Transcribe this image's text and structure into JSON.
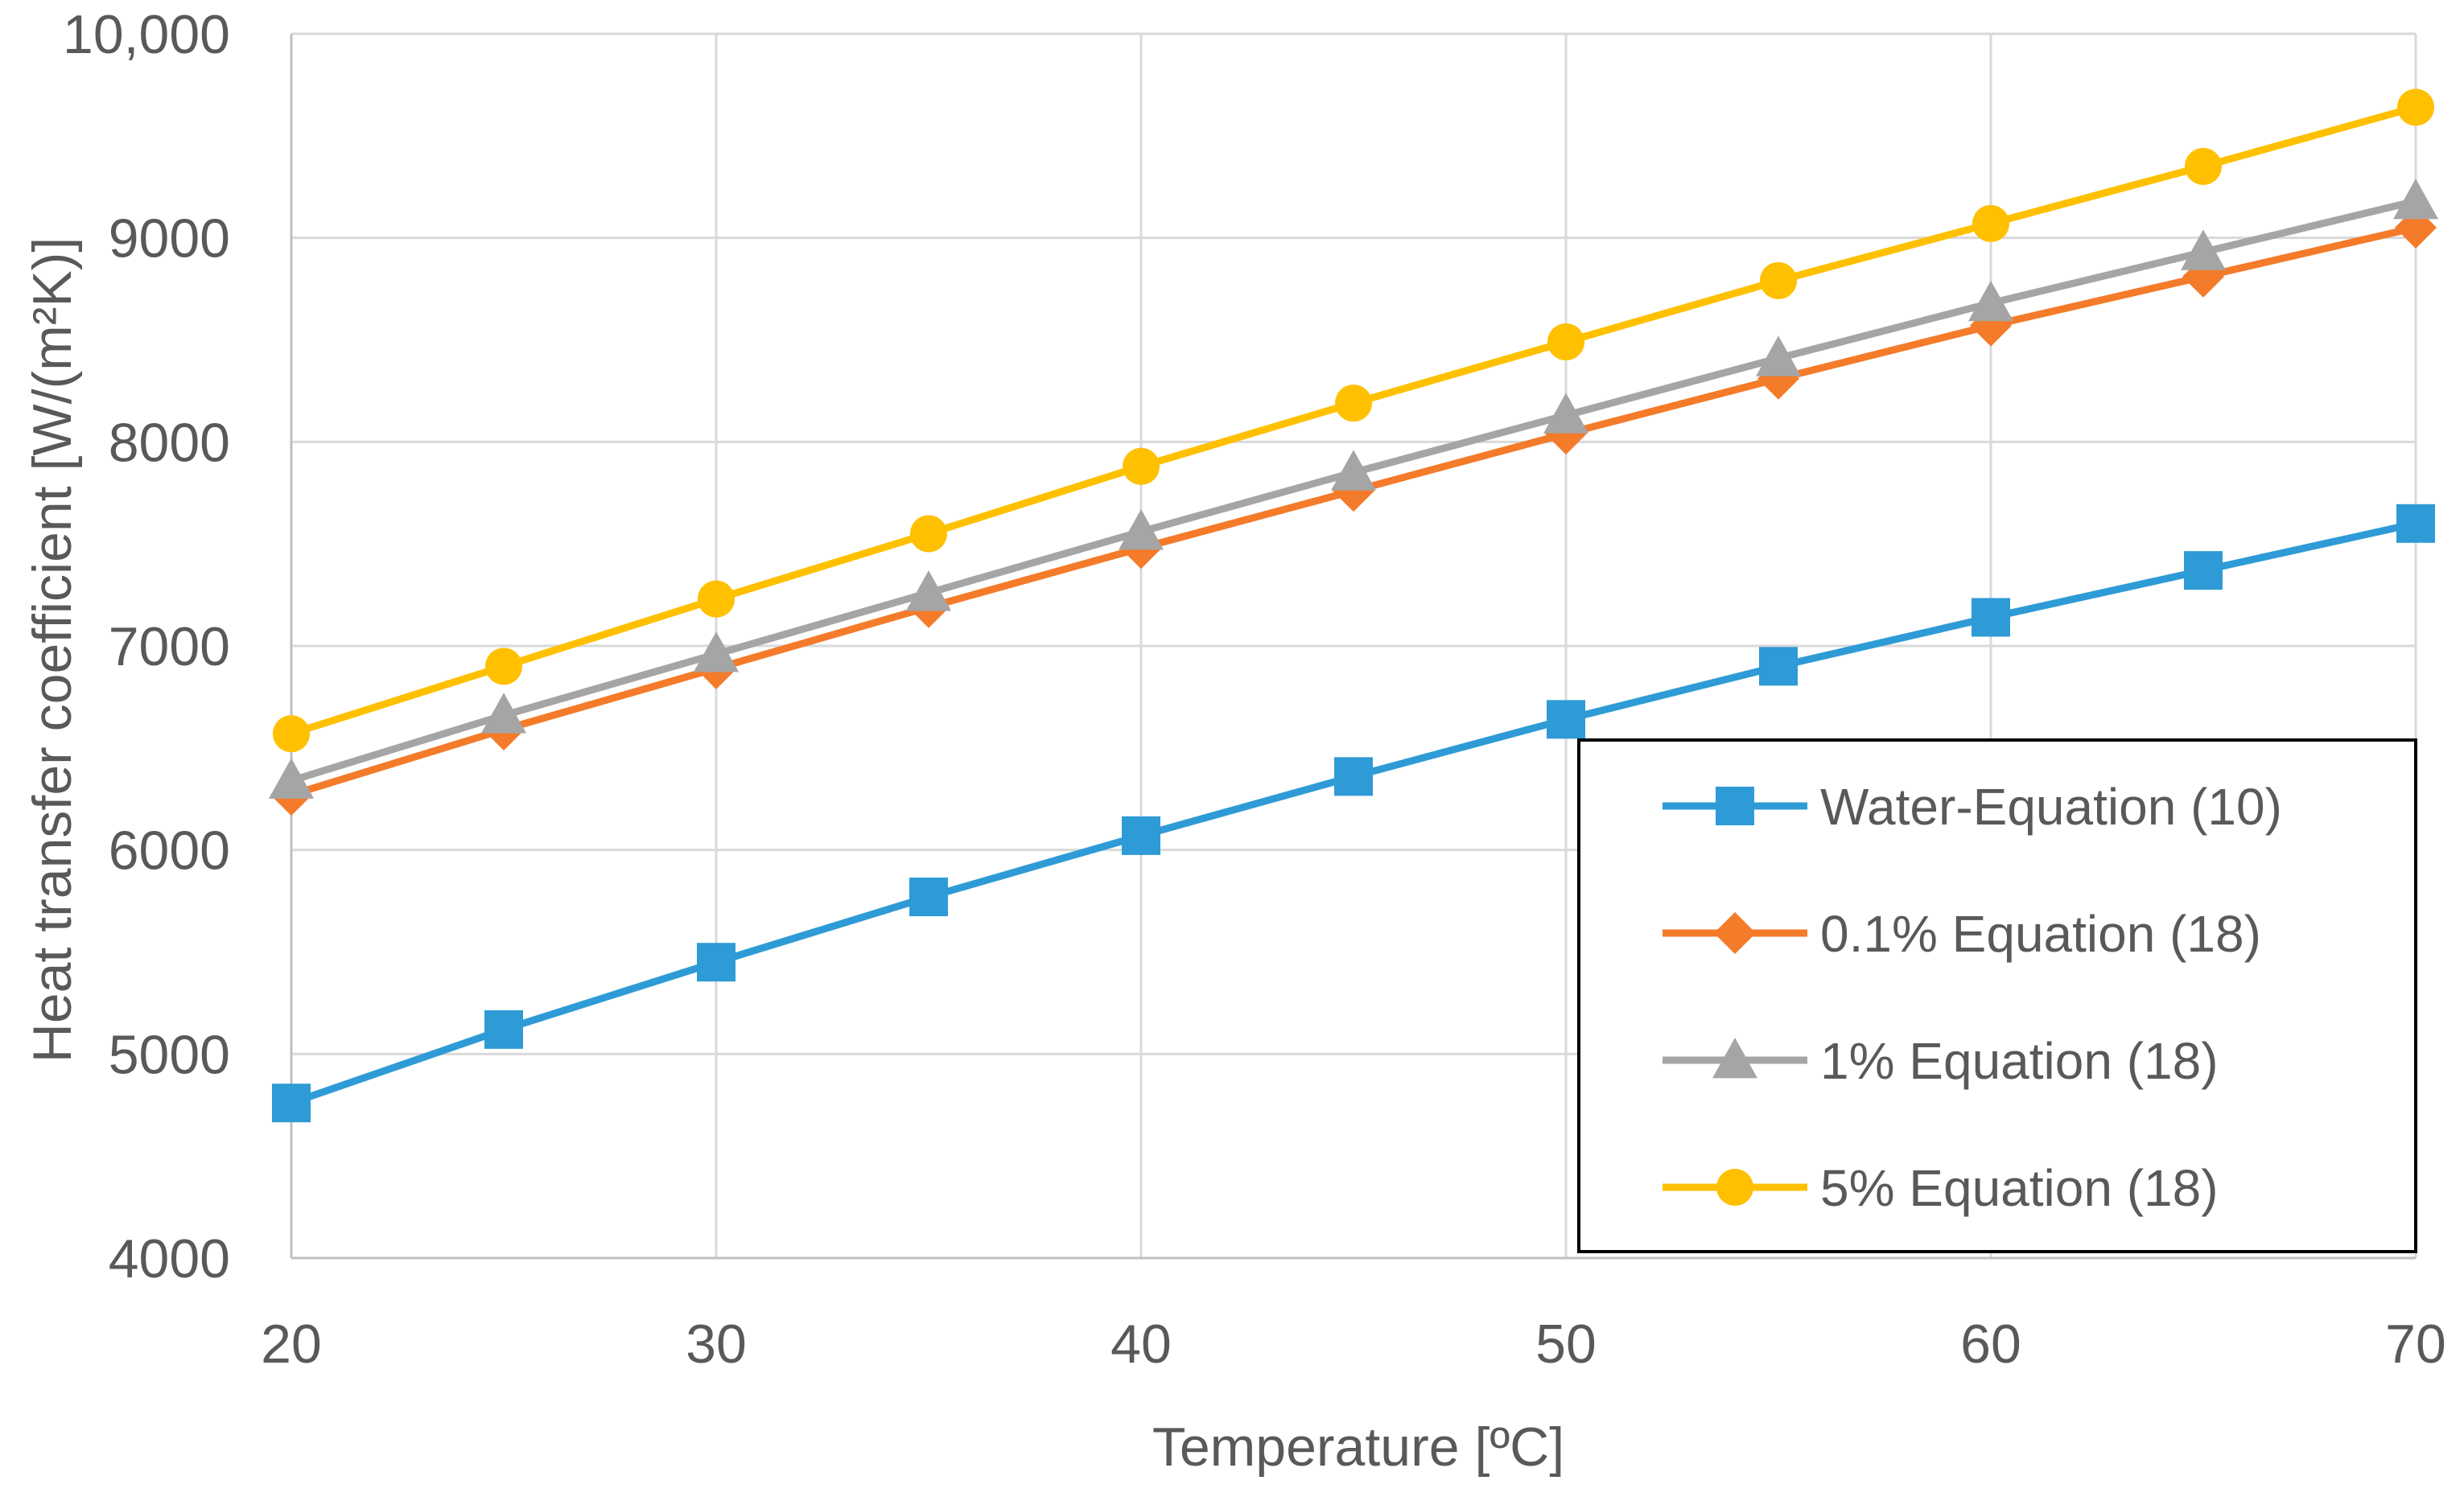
{
  "chart_data": {
    "type": "line",
    "xlabel": "Temperature [ºC]",
    "ylabel": "Heat transfer coefficient [W/(m²K)]",
    "xlim": [
      20,
      70
    ],
    "ylim": [
      4000,
      10000
    ],
    "x_ticks": [
      20,
      30,
      40,
      50,
      60,
      70
    ],
    "x_tick_labels": [
      "20",
      "30",
      "40",
      "50",
      "60",
      "70"
    ],
    "y_ticks": [
      4000,
      5000,
      6000,
      7000,
      8000,
      9000,
      10000
    ],
    "y_tick_labels": [
      "4000",
      "5000",
      "6000",
      "7000",
      "8000",
      "9000",
      "10,000"
    ],
    "grid": true,
    "legend_position": "bottom-right",
    "x": [
      20,
      25,
      30,
      35,
      40,
      45,
      50,
      55,
      60,
      65,
      70
    ],
    "series": [
      {
        "name": "Water-Equation (10)",
        "color": "#2E9BD6",
        "marker": "square",
        "values": [
          4760,
          5120,
          5450,
          5770,
          6070,
          6360,
          6640,
          6900,
          7140,
          7370,
          7600
        ]
      },
      {
        "name": "0.1% Equation (18)",
        "color": "#F47B2A",
        "marker": "diamond",
        "values": [
          6270,
          6590,
          6890,
          7190,
          7480,
          7760,
          8040,
          8310,
          8570,
          8810,
          9050
        ]
      },
      {
        "name": "1% Equation (18)",
        "color": "#A5A5A5",
        "marker": "triangle",
        "values": [
          6340,
          6660,
          6960,
          7260,
          7560,
          7850,
          8130,
          8410,
          8680,
          8930,
          9180
        ]
      },
      {
        "name": "5% Equation (18)",
        "color": "#FFC000",
        "marker": "circle",
        "values": [
          6570,
          6900,
          7230,
          7550,
          7880,
          8190,
          8490,
          8790,
          9070,
          9350,
          9640
        ]
      }
    ]
  }
}
